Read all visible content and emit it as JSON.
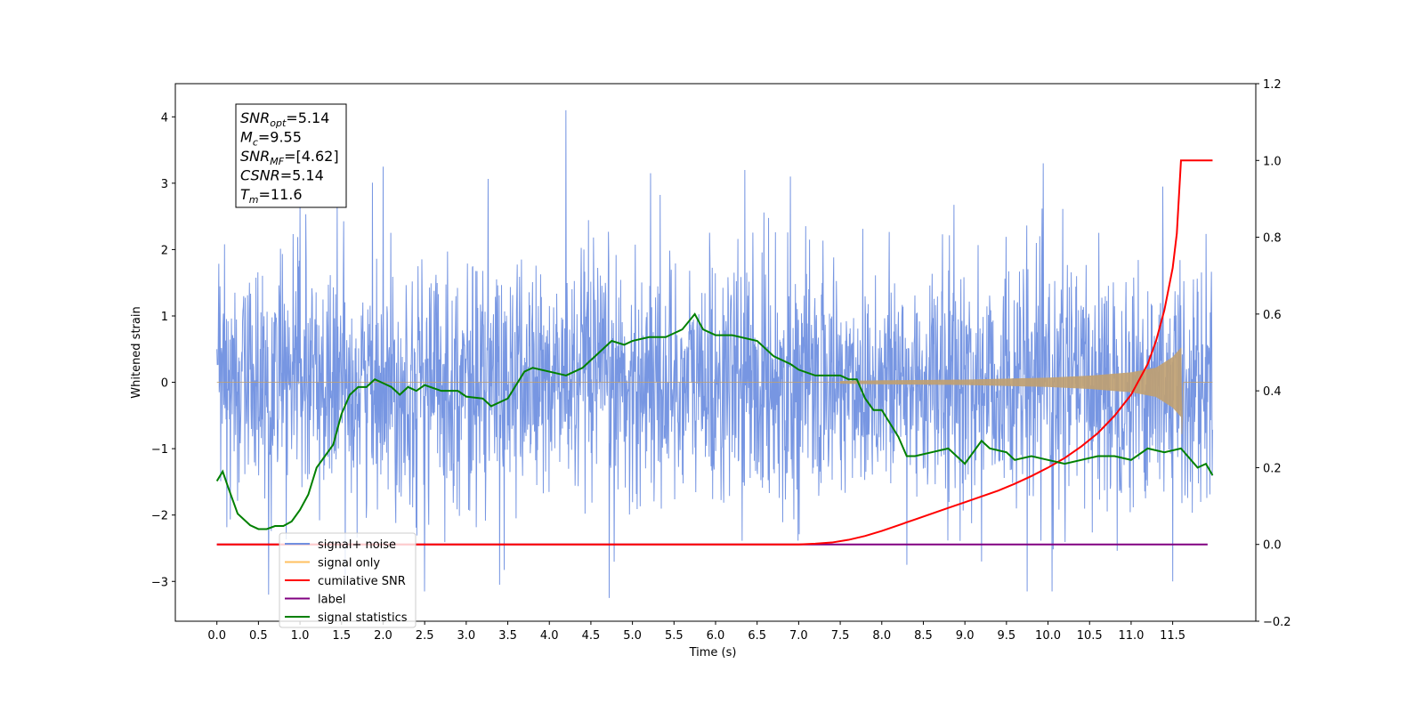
{
  "chart_data": {
    "type": "line",
    "xlabel": "Time (s)",
    "ylabel": "Whitened strain",
    "xlim": [
      -0.5,
      12.5
    ],
    "ylim": [
      -3.6,
      4.5
    ],
    "ylim_right": [
      -0.2,
      1.2
    ],
    "x_ticks": [
      "0.0",
      "0.5",
      "1.0",
      "1.5",
      "2.0",
      "2.5",
      "3.0",
      "3.5",
      "4.0",
      "4.5",
      "5.0",
      "5.5",
      "6.0",
      "6.5",
      "7.0",
      "7.5",
      "8.0",
      "8.5",
      "9.0",
      "9.5",
      "10.0",
      "10.5",
      "11.0",
      "11.5"
    ],
    "y_ticks_left": [
      "4",
      "3",
      "2",
      "1",
      "0",
      "−1",
      "−2",
      "−3"
    ],
    "y_ticks_right": [
      "1.2",
      "1.0",
      "0.8",
      "0.6",
      "0.4",
      "0.2",
      "0.0",
      "−0.2"
    ],
    "annotation": {
      "lines": [
        {
          "main": "SNR",
          "sub": "opt",
          "rest": "=5.14"
        },
        {
          "main": "M",
          "sub": "c",
          "rest": "=9.55"
        },
        {
          "main": "SNR",
          "sub": "MF",
          "rest": "=[4.62]"
        },
        {
          "main": "CSNR",
          "sub": "",
          "rest": "=5.14"
        },
        {
          "main": "T",
          "sub": "m",
          "rest": "=11.6"
        }
      ]
    },
    "legend": {
      "position": "lower-left",
      "entries": [
        {
          "label": "signal+ noise",
          "color": "#7090e0"
        },
        {
          "label": "signal only",
          "color": "#ffc060"
        },
        {
          "label": "cumilative SNR",
          "color": "#ff0000"
        },
        {
          "label": "label",
          "color": "#800080"
        },
        {
          "label": "signal statistics",
          "color": "#008000"
        }
      ]
    },
    "series": [
      {
        "name": "signal+ noise",
        "axis": "left",
        "kind": "noise",
        "color": "#7090e0",
        "x_range": [
          0.0,
          11.98
        ],
        "spread_sigma": 0.9,
        "extremes": [
          [
            4.2,
            4.1
          ],
          [
            0.62,
            -3.2
          ],
          [
            1.0,
            2.7
          ],
          [
            2.5,
            -3.15
          ],
          [
            4.72,
            -3.25
          ],
          [
            6.35,
            3.2
          ],
          [
            9.75,
            -3.15
          ],
          [
            10.05,
            -3.15
          ],
          [
            11.38,
            2.95
          ],
          [
            11.5,
            -3.0
          ],
          [
            6.9,
            3.1
          ],
          [
            3.4,
            -3.05
          ],
          [
            9.2,
            -2.7
          ],
          [
            8.3,
            -2.75
          ],
          [
            5.22,
            3.15
          ],
          [
            2.0,
            3.25
          ]
        ]
      },
      {
        "name": "signal only",
        "axis": "left",
        "kind": "chirp",
        "color": "#c0a070",
        "x_range": [
          0.0,
          11.98
        ],
        "merger_time": 11.6,
        "envelope": [
          [
            7.5,
            0.02
          ],
          [
            8.0,
            0.03
          ],
          [
            9.0,
            0.04
          ],
          [
            10.0,
            0.07
          ],
          [
            10.5,
            0.1
          ],
          [
            11.0,
            0.15
          ],
          [
            11.3,
            0.22
          ],
          [
            11.5,
            0.38
          ],
          [
            11.6,
            0.52
          ]
        ],
        "post_merger": [
          -0.78,
          0.0
        ]
      },
      {
        "name": "cumilative SNR",
        "axis": "right",
        "color": "#ff0000",
        "x": [
          0.0,
          6.5,
          7.0,
          7.2,
          7.4,
          7.6,
          7.8,
          8.0,
          8.2,
          8.4,
          8.6,
          8.8,
          9.0,
          9.2,
          9.4,
          9.6,
          9.8,
          10.0,
          10.2,
          10.4,
          10.6,
          10.8,
          11.0,
          11.2,
          11.3,
          11.4,
          11.5,
          11.55,
          11.6,
          11.7,
          11.98
        ],
        "y": [
          0.0,
          0.0,
          0.0,
          0.002,
          0.005,
          0.012,
          0.022,
          0.035,
          0.05,
          0.065,
          0.08,
          0.095,
          0.11,
          0.125,
          0.14,
          0.158,
          0.178,
          0.2,
          0.225,
          0.255,
          0.29,
          0.335,
          0.39,
          0.47,
          0.53,
          0.61,
          0.72,
          0.81,
          1.0,
          1.0,
          1.0
        ]
      },
      {
        "name": "label",
        "axis": "right",
        "color": "#800080",
        "x": [
          0.0,
          11.92
        ],
        "y": [
          0.0,
          0.0
        ]
      },
      {
        "name": "signal statistics",
        "axis": "right",
        "color": "#008000",
        "x": [
          0.0,
          0.07,
          0.15,
          0.25,
          0.4,
          0.5,
          0.6,
          0.7,
          0.8,
          0.9,
          1.0,
          1.1,
          1.2,
          1.3,
          1.4,
          1.5,
          1.6,
          1.7,
          1.8,
          1.9,
          2.0,
          2.1,
          2.2,
          2.3,
          2.4,
          2.5,
          2.7,
          2.9,
          3.0,
          3.2,
          3.3,
          3.5,
          3.7,
          3.8,
          4.0,
          4.2,
          4.4,
          4.6,
          4.75,
          4.9,
          5.0,
          5.2,
          5.4,
          5.6,
          5.75,
          5.85,
          6.0,
          6.2,
          6.5,
          6.7,
          6.9,
          7.0,
          7.2,
          7.4,
          7.5,
          7.6,
          7.7,
          7.8,
          7.9,
          8.0,
          8.2,
          8.3,
          8.4,
          8.6,
          8.8,
          9.0,
          9.1,
          9.2,
          9.3,
          9.5,
          9.6,
          9.8,
          10.0,
          10.2,
          10.4,
          10.6,
          10.8,
          11.0,
          11.2,
          11.4,
          11.6,
          11.8,
          11.9,
          11.98
        ],
        "y": [
          0.165,
          0.19,
          0.14,
          0.08,
          0.05,
          0.04,
          0.04,
          0.048,
          0.048,
          0.06,
          0.09,
          0.13,
          0.2,
          0.23,
          0.26,
          0.34,
          0.39,
          0.41,
          0.41,
          0.43,
          0.42,
          0.41,
          0.39,
          0.41,
          0.4,
          0.415,
          0.4,
          0.4,
          0.385,
          0.38,
          0.36,
          0.38,
          0.45,
          0.46,
          0.45,
          0.44,
          0.46,
          0.5,
          0.53,
          0.52,
          0.53,
          0.54,
          0.54,
          0.56,
          0.6,
          0.56,
          0.545,
          0.545,
          0.53,
          0.49,
          0.47,
          0.455,
          0.44,
          0.44,
          0.44,
          0.43,
          0.43,
          0.38,
          0.35,
          0.35,
          0.28,
          0.23,
          0.23,
          0.24,
          0.25,
          0.21,
          0.24,
          0.27,
          0.25,
          0.24,
          0.22,
          0.23,
          0.22,
          0.21,
          0.22,
          0.23,
          0.23,
          0.22,
          0.25,
          0.24,
          0.25,
          0.2,
          0.21,
          0.18
        ]
      }
    ]
  }
}
